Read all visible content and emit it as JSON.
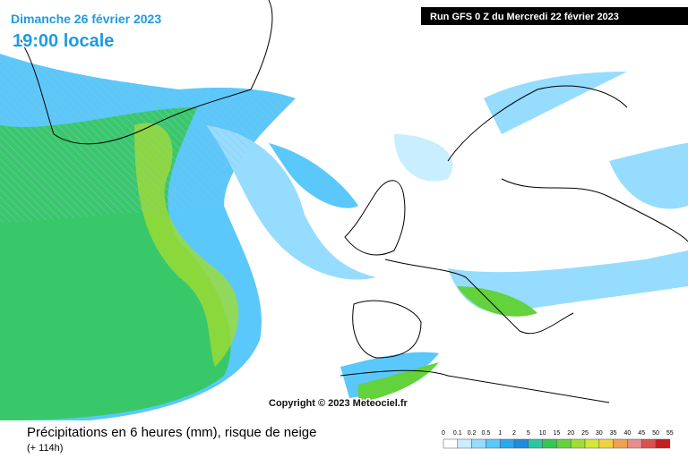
{
  "header": {
    "date": "Dimanche 26 février 2023",
    "time": "19:00 locale",
    "run": "Run GFS 0 Z du Mercredi 22 février 2023"
  },
  "copyright": "Copyright © 2023 Meteociel.fr",
  "legend": {
    "title": "Précipitations en 6 heures (mm), risque de neige",
    "lead": "(+ 114h)",
    "ticks": [
      0,
      0.1,
      0.2,
      0.5,
      1,
      2,
      5,
      10,
      15,
      20,
      25,
      30,
      35,
      40,
      45,
      50,
      55
    ],
    "colors": [
      "#ffffff",
      "#c8eeff",
      "#96dcff",
      "#5ac8fa",
      "#28aaf0",
      "#1e8cdc",
      "#28c8a0",
      "#32c850",
      "#64d23c",
      "#a0dc32",
      "#d2e632",
      "#f0d23c",
      "#f0a050",
      "#e68c8c",
      "#dc5050",
      "#c81e1e"
    ]
  }
}
